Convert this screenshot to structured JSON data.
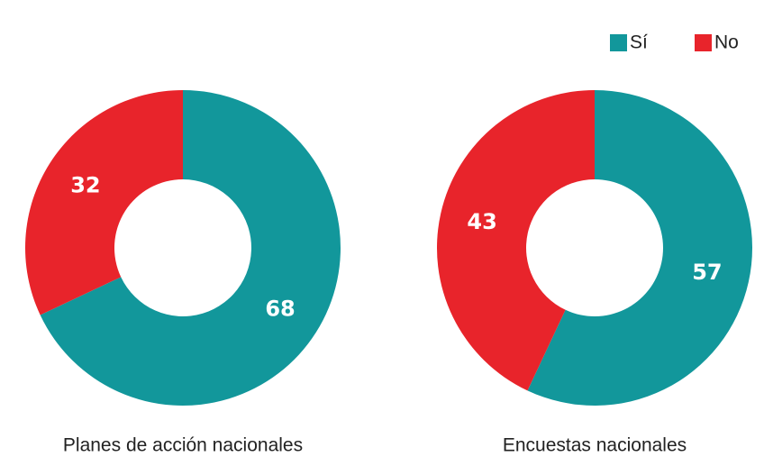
{
  "chart_data": [
    {
      "type": "pie",
      "title": "Planes de acción nacionales",
      "categories": [
        "Sí",
        "No"
      ],
      "values": [
        68,
        32
      ],
      "colors": [
        "#12979b",
        "#e8242b"
      ],
      "legend": "top-right"
    },
    {
      "type": "pie",
      "title": "Encuestas nacionales",
      "categories": [
        "Sí",
        "No"
      ],
      "values": [
        57,
        43
      ],
      "colors": [
        "#12979b",
        "#e8242b"
      ]
    }
  ]
}
